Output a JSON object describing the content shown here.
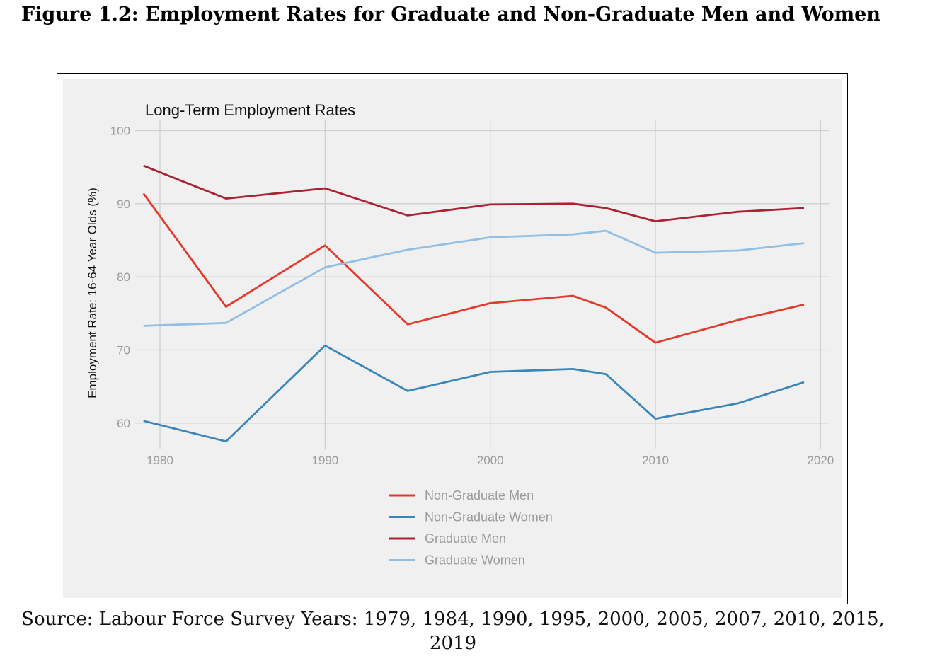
{
  "figure": {
    "caption": "Figure 1.2:  Employment Rates for Graduate and Non-Graduate Men and Women",
    "source": "Source: Labour Force Survey Years: 1979, 1984, 1990, 1995, 2000, 2005, 2007, 2010, 2015, 2019"
  },
  "chart_data": {
    "type": "line",
    "title": "Long-Term Employment Rates",
    "xlabel": "",
    "ylabel": "Employment Rate: 16-64 Year Olds (%)",
    "xlim": [
      1978.5,
      2020.5
    ],
    "ylim": [
      56.5,
      101.5
    ],
    "xticks": [
      1980,
      1990,
      2000,
      2010,
      2020
    ],
    "yticks": [
      60,
      70,
      80,
      90,
      100
    ],
    "grid": true,
    "legend_position": "bottom",
    "x": [
      1979,
      1984,
      1990,
      1995,
      2000,
      2005,
      2007,
      2010,
      2015,
      2019
    ],
    "series": [
      {
        "name": "Non-Graduate Men",
        "color": "#e23b2b",
        "values": [
          91.4,
          75.9,
          84.3,
          73.5,
          76.4,
          77.4,
          75.8,
          71.0,
          74.1,
          76.2
        ]
      },
      {
        "name": "Non-Graduate Women",
        "color": "#3b86b8",
        "values": [
          60.3,
          57.5,
          70.6,
          64.4,
          67.0,
          67.4,
          66.7,
          60.6,
          62.7,
          65.6
        ]
      },
      {
        "name": "Graduate Men",
        "color": "#ab2233",
        "values": [
          95.2,
          90.7,
          92.1,
          88.4,
          89.9,
          90.0,
          89.4,
          87.6,
          88.9,
          89.4
        ]
      },
      {
        "name": "Graduate Women",
        "color": "#91bfe6",
        "values": [
          73.3,
          73.7,
          81.3,
          83.7,
          85.4,
          85.8,
          86.3,
          83.3,
          83.6,
          84.6
        ]
      }
    ]
  }
}
